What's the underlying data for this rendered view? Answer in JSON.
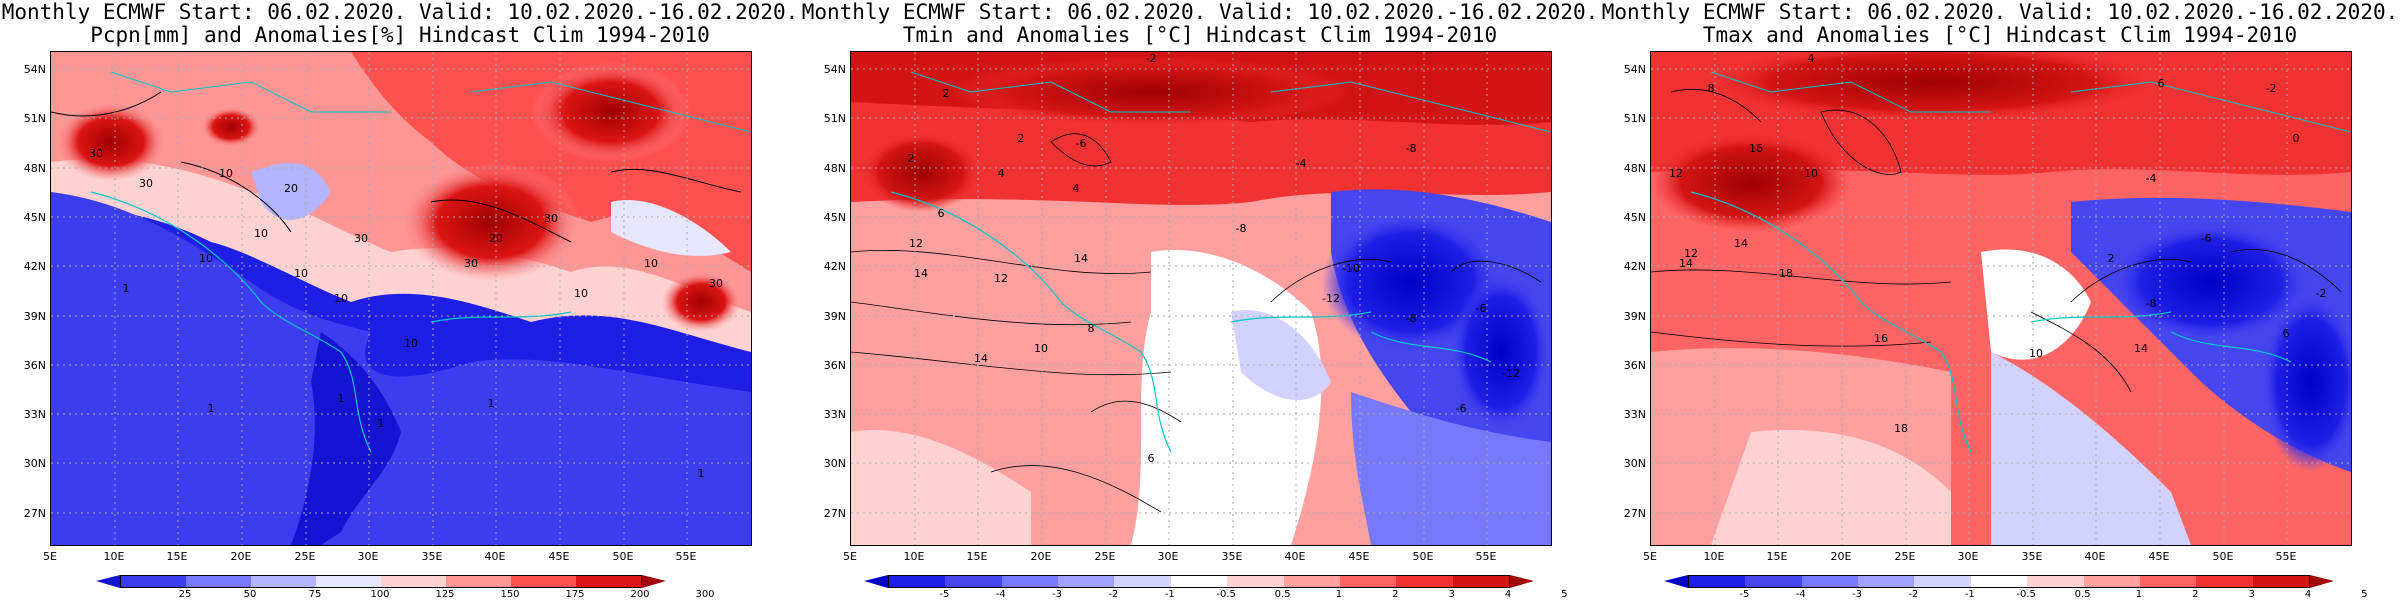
{
  "panels": [
    {
      "title_line1": "Monthly ECMWF Start: 06.02.2020. Valid: 10.02.2020.-16.02.2020.",
      "title_line2": "Pcpn[mm] and Anomalies[%] Hindcast Clim 1994-2010",
      "colorbar_ticks": [
        "25",
        "50",
        "75",
        "100",
        "125",
        "150",
        "175",
        "200",
        "300"
      ],
      "colorbar_colors": [
        "#1414d2",
        "#3c3cf0",
        "#7878fa",
        "#b4b4ff",
        "#e6e6ff",
        "#ffd2d2",
        "#ff9696",
        "#ff5050",
        "#dc1414",
        "#a00000"
      ],
      "contour_labels": [
        "30",
        "30",
        "20",
        "10",
        "10",
        "10",
        "10",
        "10",
        "1",
        "1",
        "1",
        "1",
        "1",
        "1",
        "10",
        "30",
        "30",
        "30",
        "20",
        "10",
        "10",
        "30"
      ]
    },
    {
      "title_line1": "Monthly ECMWF Start: 06.02.2020. Valid: 10.02.2020.-16.02.2020.",
      "title_line2": "Tmin and Anomalies [°C] Hindcast Clim 1994-2010",
      "colorbar_ticks": [
        "-5",
        "-4",
        "-3",
        "-2",
        "-1",
        "-0.5",
        "0.5",
        "1",
        "2",
        "3",
        "4",
        "5"
      ],
      "colorbar_colors": [
        "#0000c8",
        "#1e1ee6",
        "#4646f0",
        "#7878fa",
        "#a0a0ff",
        "#d2d2ff",
        "#ffffff",
        "#ffd2d2",
        "#ffa0a0",
        "#ff6464",
        "#f03232",
        "#d21414",
        "#a00000"
      ],
      "contour_labels": [
        "-2",
        "2",
        "2",
        "4",
        "2",
        "-6",
        "-8",
        "-4",
        "4",
        "6",
        "12",
        "14",
        "14",
        "12",
        "-8",
        "-10",
        "-6",
        "-12",
        "-8",
        "8",
        "14",
        "10",
        "6",
        "-12",
        "-6"
      ]
    },
    {
      "title_line1": "Monthly ECMWF Start: 06.02.2020. Valid: 10.02.2020.-16.02.2020.",
      "title_line2": "Tmax and Anomalies [°C] Hindcast Clim 1994-2010",
      "colorbar_ticks": [
        "-5",
        "-4",
        "-3",
        "-2",
        "-1",
        "-0.5",
        "0.5",
        "1",
        "2",
        "3",
        "4",
        "5"
      ],
      "colorbar_colors": [
        "#0000c8",
        "#1e1ee6",
        "#4646f0",
        "#7878fa",
        "#a0a0ff",
        "#d2d2ff",
        "#ffffff",
        "#ffd2d2",
        "#ffa0a0",
        "#ff6464",
        "#f03232",
        "#d21414",
        "#a00000"
      ],
      "contour_labels": [
        "4",
        "8",
        "-2",
        "6",
        "0",
        "16",
        "14",
        "12",
        "10",
        "18",
        "-4",
        "-6",
        "-8",
        "2",
        "16",
        "18",
        "14",
        "12",
        "14",
        "10",
        "-2",
        "6"
      ]
    }
  ],
  "y_axis_labels": [
    "54N",
    "51N",
    "48N",
    "45N",
    "42N",
    "39N",
    "36N",
    "33N",
    "30N",
    "27N"
  ],
  "x_axis_labels": [
    "5E",
    "10E",
    "15E",
    "20E",
    "25E",
    "30E",
    "35E",
    "40E",
    "45E",
    "50E",
    "55E"
  ]
}
